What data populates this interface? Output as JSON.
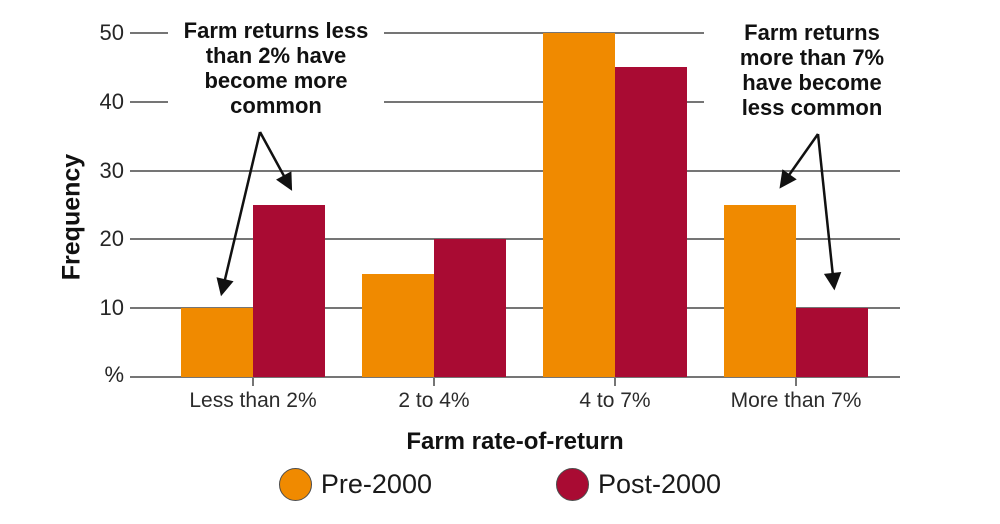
{
  "chart_data": {
    "type": "bar",
    "title": "",
    "xlabel": "Farm rate-of-return",
    "ylabel": "Frequency",
    "categories": [
      "Less than 2%",
      "2 to 4%",
      "4 to 7%",
      "More than 7%"
    ],
    "series": [
      {
        "name": "Pre-2000",
        "color": "#F08A00",
        "values": [
          10,
          15,
          50,
          25
        ]
      },
      {
        "name": "Post-2000",
        "color": "#A90B33",
        "values": [
          25,
          20,
          45,
          10
        ]
      }
    ],
    "ylim": [
      0,
      50
    ],
    "yticks": [
      10,
      20,
      30,
      40,
      50
    ],
    "baseline_tick_label": "%",
    "grid": "horizontal gridlines on",
    "legend_position": "bottom"
  },
  "annotations": [
    {
      "text": "Farm returns less\nthan 2% have\nbecome more\ncommon"
    },
    {
      "text": "Farm returns\nmore than 7%\nhave become\nless common"
    }
  ]
}
